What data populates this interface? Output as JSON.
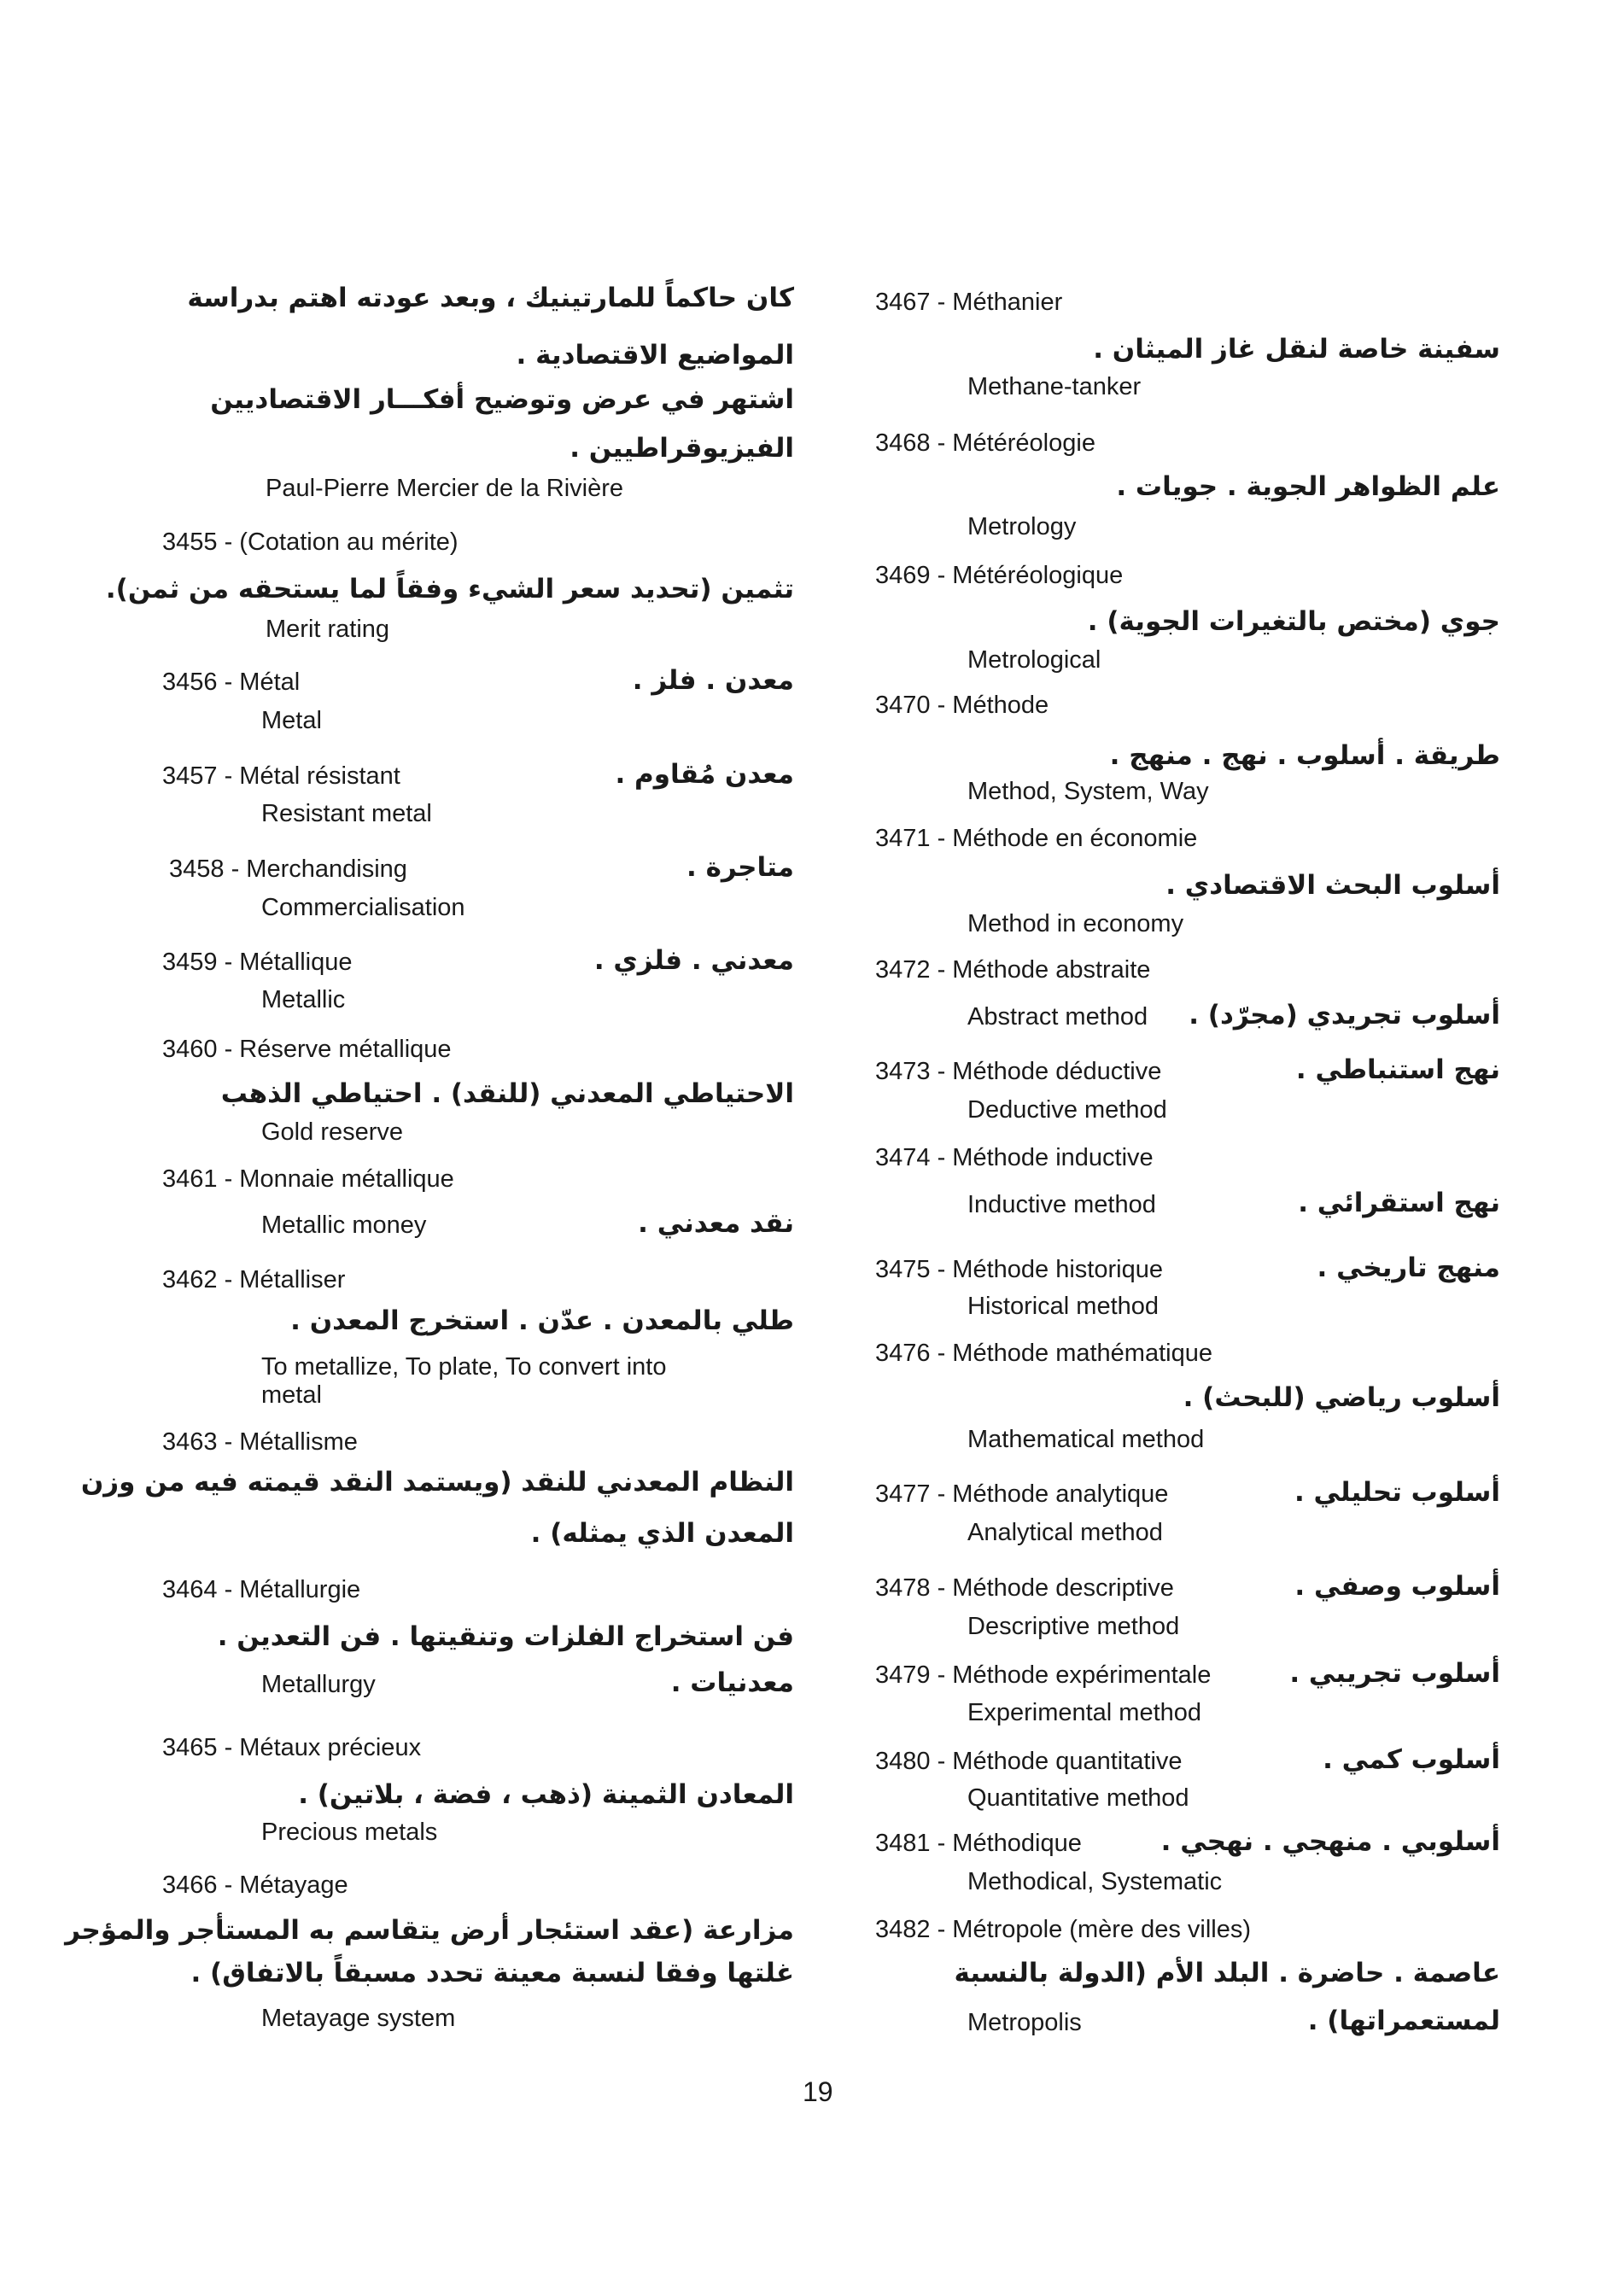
{
  "page_number": "19",
  "left_column": {
    "intro_arabic": [
      "كان حاكماً للمارتينيك ، وبعد عودته اهتم بدراسة",
      "المواضيع الاقتصادية .",
      "اشتهر في عرض وتوضيح أفكـــار الاقتصاديين",
      "الفيزيوقراطيين ."
    ],
    "intro_name": "Paul-Pierre Mercier de la Rivière",
    "entries": [
      {
        "number": "3455",
        "french": "(Cotation au mérite)",
        "arabic": [
          "تثمين (تحديد سعر الشيء وفقاً لما يستحقه من ثمن)."
        ],
        "english": [
          "Merit rating"
        ]
      },
      {
        "number": "3456",
        "french": "Métal",
        "arabic": [
          "معدن . فلز ."
        ],
        "english": [
          "Metal"
        ]
      },
      {
        "number": "3457",
        "french": "Métal résistant",
        "arabic": [
          "معدن مُقاوم ."
        ],
        "english": [
          "Resistant metal"
        ]
      },
      {
        "number": "3458",
        "french": "Merchandising",
        "arabic": [
          "متاجرة ."
        ],
        "english": [
          "Commercialisation"
        ]
      },
      {
        "number": "3459",
        "french": "Métallique",
        "arabic": [
          "معدني . فلزي ."
        ],
        "english": [
          "Metallic"
        ]
      },
      {
        "number": "3460",
        "french": "Réserve métallique",
        "arabic": [
          "الاحتياطي المعدني (للنقد) . احتياطي الذهب"
        ],
        "english": [
          "Gold reserve"
        ]
      },
      {
        "number": "3461",
        "french": "Monnaie métallique",
        "arabic": [
          "نقد معدني ."
        ],
        "english": [
          "Metallic money"
        ]
      },
      {
        "number": "3462",
        "french": "Métalliser",
        "arabic": [
          "طلي بالمعدن . عدّن . استخرج المعدن ."
        ],
        "english": [
          "To metallize, To plate, To convert into",
          "metal"
        ]
      },
      {
        "number": "3463",
        "french": "Métallisme",
        "arabic": [
          "النظام المعدني للنقد (ويستمد النقد قيمته فيه من وزن",
          "المعدن الذي يمثله) ."
        ],
        "english": []
      },
      {
        "number": "3464",
        "french": "Métallurgie",
        "arabic": [
          "فن استخراج الفلزات وتنقيتها . فن التعدين .",
          "معدنيات ."
        ],
        "english": [
          "Metallurgy"
        ]
      },
      {
        "number": "3465",
        "french": "Métaux précieux",
        "arabic": [
          "المعادن الثمينة (ذهب ، فضة ، بلاتين) ."
        ],
        "english": [
          "Precious metals"
        ]
      },
      {
        "number": "3466",
        "french": "Métayage",
        "arabic": [
          "مزارعة (عقد استئجار أرض يتقاسم به المستأجر والمؤجر",
          "غلتها وفقا لنسبة معينة تحدد مسبقاً بالاتفاق) ."
        ],
        "english": [
          "Metayage system"
        ]
      }
    ]
  },
  "right_column": {
    "entries": [
      {
        "number": "3467",
        "french": "Méthanier",
        "arabic": [
          "سفينة خاصة لنقل غاز الميثان ."
        ],
        "english": [
          "Methane-tanker"
        ]
      },
      {
        "number": "3468",
        "french": "Météréologie",
        "arabic": [
          "علم الظواهر الجوية . جويات ."
        ],
        "english": [
          "Metrology"
        ]
      },
      {
        "number": "3469",
        "french": "Météréologique",
        "arabic": [
          "جوي (مختص بالتغيرات الجوية) ."
        ],
        "english": [
          "Metrological"
        ]
      },
      {
        "number": "3470",
        "french": "Méthode",
        "arabic": [
          "طريقة . أسلوب . نهج . منهج ."
        ],
        "english": [
          "Method, System, Way"
        ]
      },
      {
        "number": "3471",
        "french": "Méthode en économie",
        "arabic": [
          "أسلوب البحث الاقتصادي ."
        ],
        "english": [
          "Method in economy"
        ]
      },
      {
        "number": "3472",
        "french": "Méthode abstraite",
        "arabic": [
          "أسلوب تجريدي (مجرّد) ."
        ],
        "english": [
          "Abstract method"
        ]
      },
      {
        "number": "3473",
        "french": "Méthode déductive",
        "arabic": [
          "نهج استنباطي ."
        ],
        "english": [
          "Deductive method"
        ]
      },
      {
        "number": "3474",
        "french": "Méthode inductive",
        "arabic": [
          "نهج استقرائي ."
        ],
        "english": [
          "Inductive method"
        ]
      },
      {
        "number": "3475",
        "french": "Méthode historique",
        "arabic": [
          "منهج تاريخي ."
        ],
        "english": [
          "Historical method"
        ]
      },
      {
        "number": "3476",
        "french": "Méthode mathématique",
        "arabic": [
          "أسلوب رياضي (للبحث) ."
        ],
        "english": [
          "Mathematical method"
        ]
      },
      {
        "number": "3477",
        "french": "Méthode analytique",
        "arabic": [
          "أسلوب تحليلي ."
        ],
        "english": [
          "Analytical method"
        ]
      },
      {
        "number": "3478",
        "french": "Méthode descriptive",
        "arabic": [
          "أسلوب وصفي ."
        ],
        "english": [
          "Descriptive method"
        ]
      },
      {
        "number": "3479",
        "french": "Méthode expérimentale",
        "arabic": [
          "أسلوب تجريبي ."
        ],
        "english": [
          "Experimental method"
        ]
      },
      {
        "number": "3480",
        "french": "Méthode quantitative",
        "arabic": [
          "أسلوب كمي ."
        ],
        "english": [
          "Quantitative method"
        ]
      },
      {
        "number": "3481",
        "french": "Méthodique",
        "arabic": [
          "أسلوبي . منهجي . نهجي ."
        ],
        "english": [
          "Methodical, Systematic"
        ]
      },
      {
        "number": "3482",
        "french": "Métropole (mère des villes)",
        "arabic": [
          "عاصمة . حاضرة . البلد الأم (الدولة بالنسبة",
          "لمستعمراتها) ."
        ],
        "english": [
          "Metropolis"
        ]
      }
    ]
  }
}
